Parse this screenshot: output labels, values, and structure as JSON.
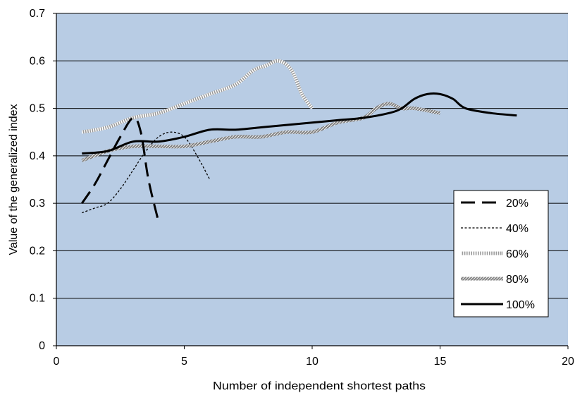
{
  "chart_data": {
    "type": "line",
    "title": "",
    "xlabel": "Number  of independent shortest paths",
    "ylabel": "Value of the generalized index",
    "xlim": [
      0,
      20
    ],
    "ylim": [
      0,
      0.7
    ],
    "x_ticks": [
      0,
      5,
      10,
      15,
      20
    ],
    "y_ticks": [
      0,
      0.1,
      0.2,
      0.3,
      0.4,
      0.5,
      0.6,
      0.7
    ],
    "x_tick_labels": [
      "0",
      "5",
      "10",
      "15",
      "20"
    ],
    "y_tick_labels": [
      "0",
      "0.1",
      "0.2",
      "0.3",
      "0.4",
      "0.5",
      "0.6",
      "0.7"
    ],
    "grid": "horizontal",
    "plot_background": "#b8cce4",
    "legend_position": "right",
    "series": [
      {
        "name": "20%",
        "style": "long-dash",
        "x": [
          1,
          1.5,
          2,
          2.5,
          3,
          3.3,
          3.6,
          4
        ],
        "y": [
          0.3,
          0.34,
          0.39,
          0.44,
          0.48,
          0.45,
          0.35,
          0.26
        ]
      },
      {
        "name": "40%",
        "style": "short-dash",
        "x": [
          1,
          1.5,
          2,
          2.5,
          3,
          3.5,
          4,
          4.5,
          5,
          5.5,
          6
        ],
        "y": [
          0.28,
          0.29,
          0.3,
          0.33,
          0.37,
          0.41,
          0.44,
          0.45,
          0.44,
          0.4,
          0.35
        ]
      },
      {
        "name": "60%",
        "style": "dotted-thick",
        "x": [
          1,
          2,
          3,
          4,
          5,
          6,
          7,
          7.7,
          8.2,
          8.7,
          9.2,
          9.6,
          10
        ],
        "y": [
          0.45,
          0.46,
          0.48,
          0.49,
          0.51,
          0.53,
          0.55,
          0.58,
          0.59,
          0.6,
          0.58,
          0.53,
          0.5
        ]
      },
      {
        "name": "80%",
        "style": "textured-thick",
        "x": [
          1,
          2,
          3,
          4,
          5,
          6,
          7,
          8,
          9,
          10,
          11,
          12,
          12.5,
          13,
          13.5,
          14,
          15
        ],
        "y": [
          0.39,
          0.41,
          0.42,
          0.42,
          0.42,
          0.43,
          0.44,
          0.44,
          0.45,
          0.45,
          0.47,
          0.48,
          0.5,
          0.51,
          0.5,
          0.5,
          0.49
        ]
      },
      {
        "name": "100%",
        "style": "solid",
        "x": [
          1,
          2,
          3,
          4,
          5,
          6,
          7,
          8,
          9,
          10,
          11,
          12,
          13,
          13.5,
          14,
          14.5,
          15,
          15.5,
          16,
          17,
          18
        ],
        "y": [
          0.405,
          0.41,
          0.43,
          0.43,
          0.44,
          0.455,
          0.455,
          0.46,
          0.465,
          0.47,
          0.475,
          0.48,
          0.49,
          0.5,
          0.52,
          0.53,
          0.53,
          0.52,
          0.5,
          0.49,
          0.485
        ]
      }
    ]
  }
}
